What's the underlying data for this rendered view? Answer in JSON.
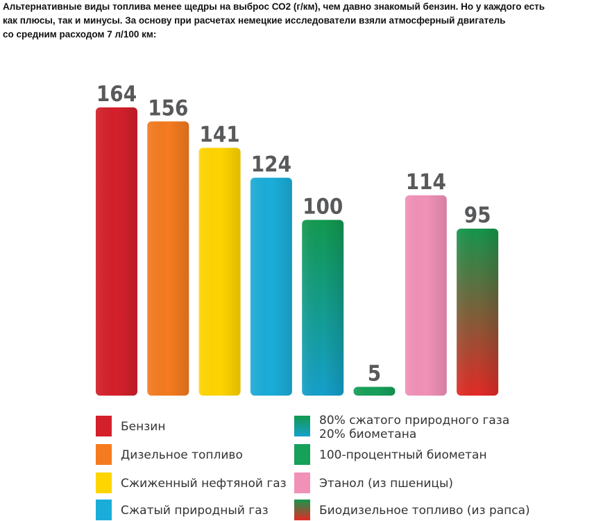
{
  "intro": {
    "lines": [
      "Альтернативные виды топлива менее щедры на выброс СО2 (г/км), чем давно знакомый бензин. Но у каждого есть",
      "как плюсы, так и минусы. За основу при расчетах немецкие исследователи взяли атмосферный двигатель",
      "со средним расходом 7 л/100 км:"
    ]
  },
  "chart_data": {
    "type": "bar",
    "title": "",
    "xlabel": "",
    "ylabel": "",
    "ylim": [
      0,
      164
    ],
    "grid": false,
    "legend_position": "bottom",
    "categories": [
      "Бензин",
      "Дизельное топливо",
      "Сжиженный нефтяной газ",
      "Сжатый природный газ",
      "80% сжатого природного газа 20% биометана",
      "100-процентный биометан",
      "Этанол (из пшеницы)",
      "Биодизельное топливо (из рапса)"
    ],
    "values": [
      164,
      156,
      141,
      124,
      100,
      5,
      114,
      95
    ],
    "value_labels": [
      "164",
      "156",
      "141",
      "124",
      "100",
      "5",
      "114",
      "95"
    ],
    "colors": [
      [
        "#d4202b",
        "#d4202b"
      ],
      [
        "#f47b20",
        "#f47b20"
      ],
      [
        "#ffd500",
        "#ffd500"
      ],
      [
        "#1badd9",
        "#1badd9"
      ],
      [
        "#12994f",
        "#15a0cc"
      ],
      [
        "#17a05a",
        "#17a05a"
      ],
      [
        "#f291b8",
        "#f291b8"
      ],
      [
        "#15964d",
        "#e32a26"
      ]
    ],
    "legend": [
      {
        "lines": [
          "Бензин"
        ],
        "colors": [
          "#d4202b",
          "#d4202b"
        ]
      },
      {
        "lines": [
          "Дизельное топливо"
        ],
        "colors": [
          "#f47b20",
          "#f47b20"
        ]
      },
      {
        "lines": [
          "Сжиженный нефтяной газ"
        ],
        "colors": [
          "#ffd500",
          "#ffd500"
        ]
      },
      {
        "lines": [
          "Сжатый природный газ"
        ],
        "colors": [
          "#1badd9",
          "#1badd9"
        ]
      },
      {
        "lines": [
          "80% сжатого природного газа",
          "20% биометана"
        ],
        "colors": [
          "#12994f",
          "#15a0cc"
        ]
      },
      {
        "lines": [
          "100-процентный биометан"
        ],
        "colors": [
          "#17a05a",
          "#17a05a"
        ]
      },
      {
        "lines": [
          "Этанол (из пшеницы)"
        ],
        "colors": [
          "#f291b8",
          "#f291b8"
        ]
      },
      {
        "lines": [
          "Биодизельное топливо (из рапса)"
        ],
        "colors": [
          "#15964d",
          "#e32a26"
        ]
      }
    ],
    "value_label_color": "#58595b",
    "legend_text_color": "#333333"
  }
}
